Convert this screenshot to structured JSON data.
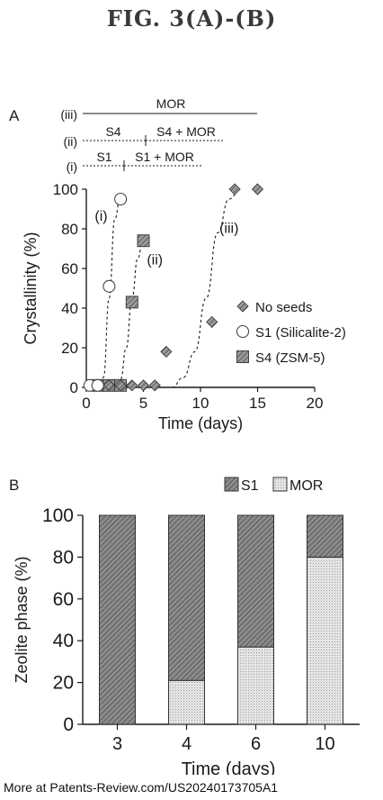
{
  "figure": {
    "title": "FIG. 3(A)-(B)",
    "footer": "More at Patents-Review.com/US20240173705A1"
  },
  "panel_a": {
    "label": "A",
    "stage_bars": [
      {
        "label": "(iii)",
        "segments": [
          "MOR"
        ]
      },
      {
        "label": "(ii)",
        "segments": [
          "S4",
          "S4 + MOR"
        ]
      },
      {
        "label": "(i)",
        "segments": [
          "S1",
          "S1 + MOR"
        ]
      }
    ],
    "curve_labels": [
      "(i)",
      "(ii)",
      "(iii)"
    ]
  },
  "panel_b": {
    "label": "B"
  },
  "colors": {
    "ink": "#1a1a1a",
    "hatch_dark": "#7a7a7a",
    "hatch_light": "#d8d8d8"
  },
  "chart_data": [
    {
      "type": "scatter",
      "xlabel": "Time (days)",
      "ylabel": "Crystallinity (%)",
      "xlim": [
        0,
        20
      ],
      "ylim": [
        0,
        100
      ],
      "x_ticks": [
        0,
        5,
        10,
        15,
        20
      ],
      "y_ticks": [
        0,
        20,
        40,
        60,
        80,
        100
      ],
      "legend_position": "right",
      "series": [
        {
          "name": "No seeds",
          "marker": "diamond",
          "x": [
            2,
            3,
            4,
            5,
            6,
            7,
            11,
            13,
            15
          ],
          "y": [
            1,
            1,
            1,
            1,
            1,
            18,
            33,
            100,
            100
          ]
        },
        {
          "name": "S1 (Silicalite-2)",
          "marker": "circle",
          "x": [
            0.3,
            1,
            2,
            3
          ],
          "y": [
            1,
            1,
            51,
            95
          ]
        },
        {
          "name": "S4 (ZSM-5)",
          "marker": "square",
          "x": [
            1,
            2,
            3,
            4,
            5
          ],
          "y": [
            1,
            1,
            1,
            43,
            74
          ]
        }
      ],
      "fit_curves": [
        {
          "label": "(i)",
          "x": [
            1,
            1.5,
            2,
            2.5,
            3
          ],
          "y": [
            0,
            5,
            45,
            85,
            97
          ]
        },
        {
          "label": "(ii)",
          "x": [
            2.5,
            3,
            3.5,
            4,
            4.5,
            5
          ],
          "y": [
            0,
            4,
            20,
            45,
            65,
            76
          ]
        },
        {
          "label": "(iii)",
          "x": [
            7.5,
            8.5,
            9.5,
            10.5,
            11.5,
            12.5,
            13.5
          ],
          "y": [
            0,
            5,
            18,
            45,
            78,
            95,
            100
          ]
        }
      ]
    },
    {
      "type": "bar",
      "stacked": true,
      "xlabel": "Time (days)",
      "ylabel": "Zeolite phase (%)",
      "ylim": [
        0,
        100
      ],
      "y_ticks": [
        0,
        20,
        40,
        60,
        80,
        100
      ],
      "categories": [
        "3",
        "4",
        "6",
        "10"
      ],
      "legend_position": "top-right",
      "series": [
        {
          "name": "MOR",
          "values": [
            0,
            21,
            37,
            80
          ]
        },
        {
          "name": "S1",
          "values": [
            100,
            79,
            63,
            20
          ]
        }
      ]
    }
  ]
}
